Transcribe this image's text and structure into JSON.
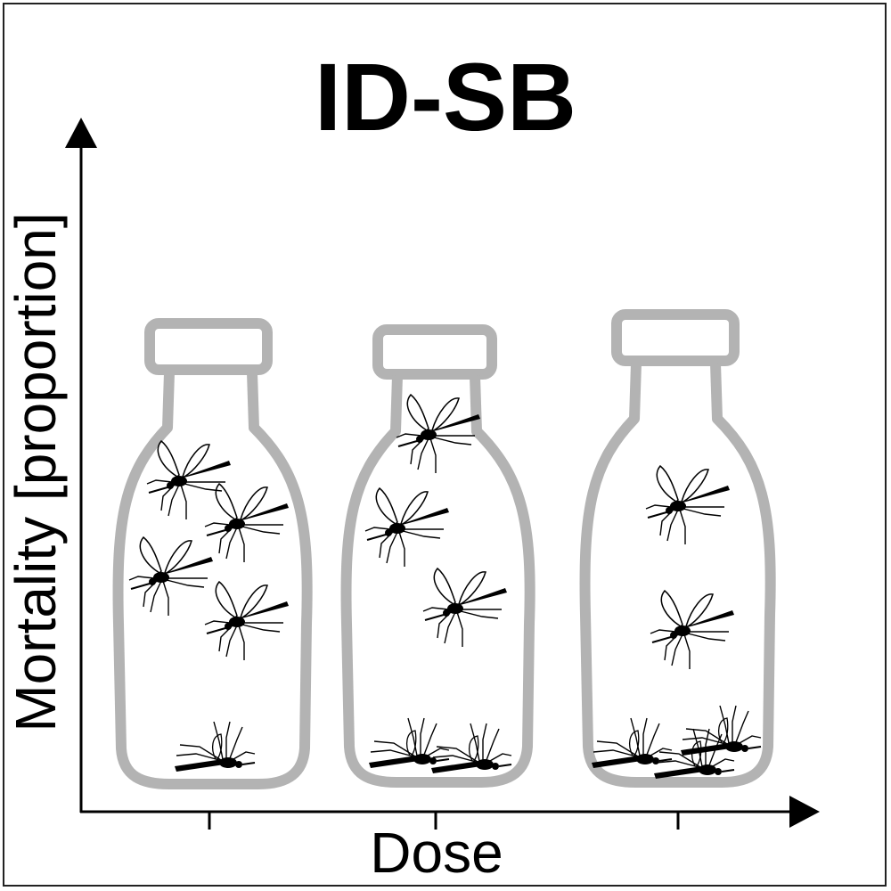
{
  "figure": {
    "title": "ID-SB",
    "y_axis_label": "Mortality [proportion]",
    "x_axis_label": "Dose"
  },
  "bottles": [
    {
      "name": "low-dose-bottle",
      "alive": 4,
      "dead": 1
    },
    {
      "name": "mid-dose-bottle",
      "alive": 3,
      "dead": 2
    },
    {
      "name": "high-dose-bottle",
      "alive": 2,
      "dead": 3
    }
  ],
  "colors": {
    "bottle_outline": "#b3b3b3",
    "ink": "#000000"
  },
  "icons": [
    "mosquito-icon",
    "dead-mosquito-icon"
  ]
}
